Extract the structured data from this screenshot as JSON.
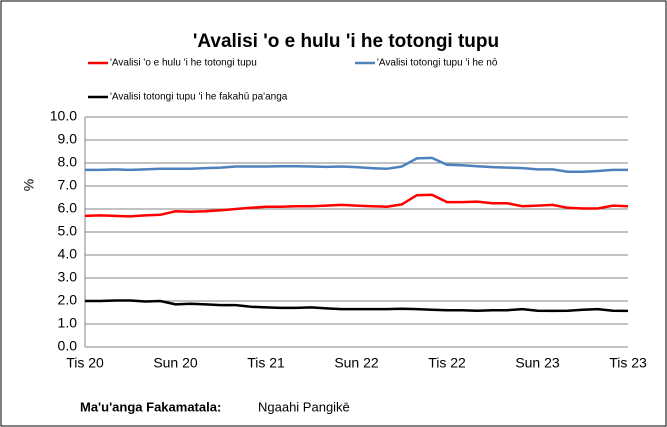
{
  "chart_data": {
    "type": "line",
    "title": "'Avalisi 'o e hulu 'i he totongi tupu",
    "ylabel": "%",
    "categories": [
      "Tis 20",
      null,
      null,
      null,
      null,
      null,
      "Sun 20",
      null,
      null,
      null,
      null,
      null,
      "Tis 21",
      null,
      null,
      null,
      null,
      null,
      "Sun 22",
      null,
      null,
      null,
      null,
      null,
      "Tis 22",
      null,
      null,
      null,
      null,
      null,
      "Sun 23",
      null,
      null,
      null,
      null,
      null,
      "Tis 23"
    ],
    "series": [
      {
        "name": "'Avalisi 'o e hulu 'i he totongi tupu",
        "color": "#ff0000",
        "values": [
          5.7,
          5.72,
          5.7,
          5.68,
          5.72,
          5.75,
          5.9,
          5.88,
          5.9,
          5.95,
          6.0,
          6.05,
          6.1,
          6.1,
          6.12,
          6.12,
          6.15,
          6.18,
          6.15,
          6.12,
          6.1,
          6.2,
          6.6,
          6.62,
          6.3,
          6.3,
          6.32,
          6.25,
          6.25,
          6.12,
          6.15,
          6.18,
          6.05,
          6.02,
          6.02,
          6.15,
          6.12
        ]
      },
      {
        "name": "'Avalisi totongi tupu 'i he nō",
        "color": "#4f81bd",
        "values": [
          7.7,
          7.7,
          7.72,
          7.7,
          7.72,
          7.75,
          7.75,
          7.75,
          7.78,
          7.8,
          7.85,
          7.85,
          7.85,
          7.86,
          7.86,
          7.85,
          7.83,
          7.85,
          7.82,
          7.78,
          7.75,
          7.85,
          8.2,
          8.22,
          7.92,
          7.9,
          7.86,
          7.82,
          7.8,
          7.78,
          7.72,
          7.72,
          7.62,
          7.62,
          7.65,
          7.7,
          7.7
        ]
      },
      {
        "name": "'Avalisi totongi tupu 'i he fakahū pa'anga",
        "color": "#000000",
        "values": [
          2.0,
          2.0,
          2.02,
          2.02,
          1.98,
          2.0,
          1.85,
          1.88,
          1.85,
          1.82,
          1.82,
          1.75,
          1.72,
          1.7,
          1.7,
          1.72,
          1.68,
          1.65,
          1.65,
          1.65,
          1.65,
          1.66,
          1.65,
          1.62,
          1.6,
          1.6,
          1.58,
          1.6,
          1.6,
          1.65,
          1.58,
          1.57,
          1.58,
          1.62,
          1.65,
          1.58,
          1.57
        ]
      }
    ],
    "ylim": [
      0,
      10
    ],
    "yticks": [
      {
        "value": 0,
        "label": "0.0"
      },
      {
        "value": 1,
        "label": "1.0"
      },
      {
        "value": 2,
        "label": "2.0"
      },
      {
        "value": 3,
        "label": "3.0"
      },
      {
        "value": 4,
        "label": "4.0"
      },
      {
        "value": 5,
        "label": "5.0"
      },
      {
        "value": 6,
        "label": "6.0"
      },
      {
        "value": 7,
        "label": "7.0"
      },
      {
        "value": 8,
        "label": "8.0"
      },
      {
        "value": 9,
        "label": "9.0"
      },
      {
        "value": 10,
        "label": "10.0"
      }
    ],
    "grid": true,
    "source": {
      "label": "Ma'u'anga Fakamatala:",
      "text": "Ngaahi Pangikē"
    }
  }
}
